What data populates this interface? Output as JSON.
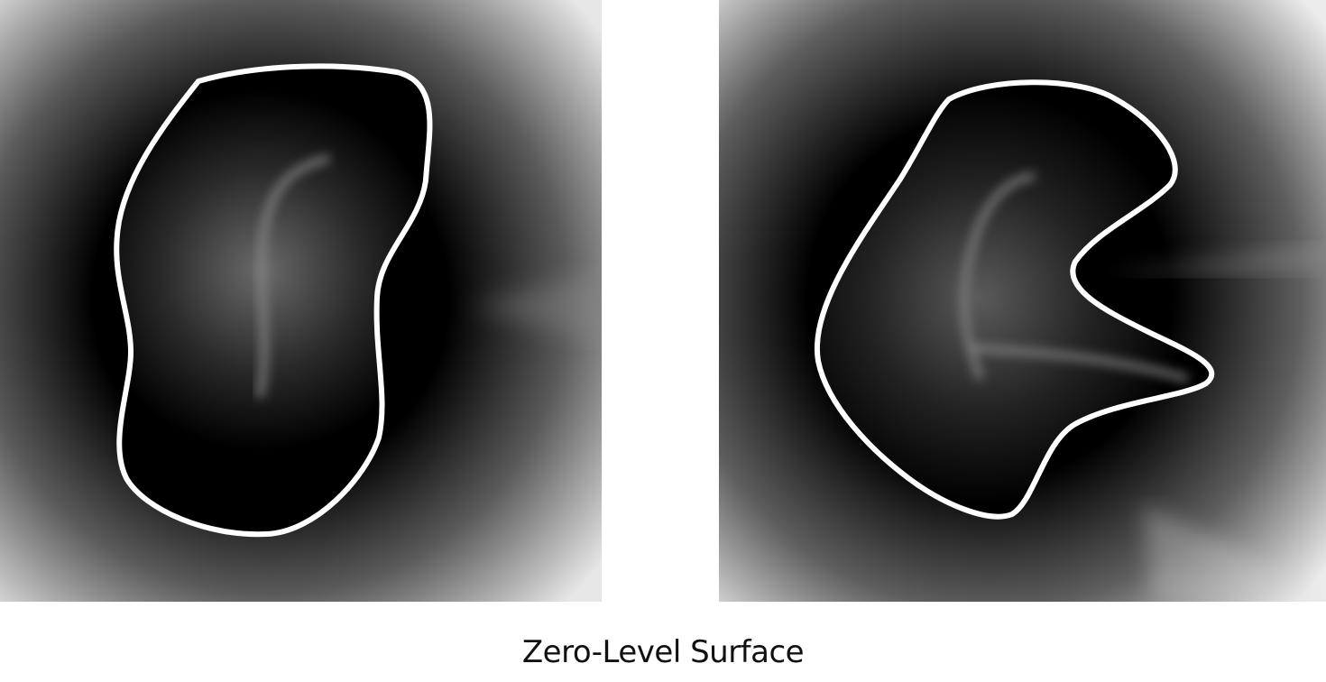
{
  "caption": "Zero-Level Surface",
  "colors": {
    "background": "#ffffff",
    "field_dark": "#000000",
    "field_light": "#ffffff",
    "skeleton": "#7a7a7a",
    "contour": "#ffffff"
  },
  "panels": [
    {
      "name": "left-sdf-panel",
      "shape": "rounded blob"
    },
    {
      "name": "right-sdf-panel",
      "shape": "notched blob"
    }
  ]
}
